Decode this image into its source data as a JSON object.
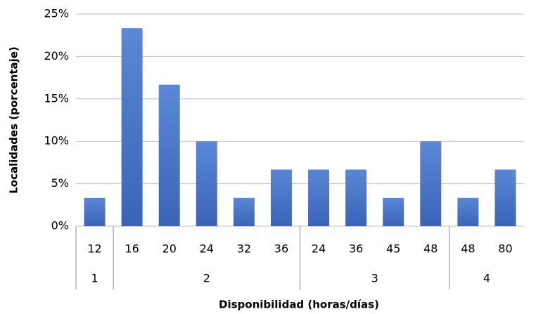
{
  "chart_data": {
    "type": "bar",
    "y_label": "Localidades (porcentaje)",
    "x_label": "Disponibilidad (horas/días)",
    "color": "#4472c4",
    "groups": [
      {
        "name": "1",
        "categories": [
          "12"
        ],
        "values": [
          3.33
        ]
      },
      {
        "name": "2",
        "categories": [
          "16",
          "20",
          "24",
          "32",
          "36"
        ],
        "values": [
          23.33,
          16.67,
          10,
          3.33,
          6.67
        ]
      },
      {
        "name": "3",
        "categories": [
          "24",
          "36",
          "45",
          "48"
        ],
        "values": [
          6.67,
          6.67,
          3.33,
          10
        ]
      },
      {
        "name": "4",
        "categories": [
          "48",
          "80"
        ],
        "values": [
          3.33,
          6.67
        ]
      }
    ],
    "ylim": [
      0,
      25
    ],
    "yticks": [
      {
        "value": 0,
        "label": "0%"
      },
      {
        "value": 5,
        "label": "5%"
      },
      {
        "value": 10,
        "label": "10%"
      },
      {
        "value": 15,
        "label": "15%"
      },
      {
        "value": 20,
        "label": "20%"
      },
      {
        "value": 25,
        "label": "25%"
      }
    ],
    "grid": true
  }
}
